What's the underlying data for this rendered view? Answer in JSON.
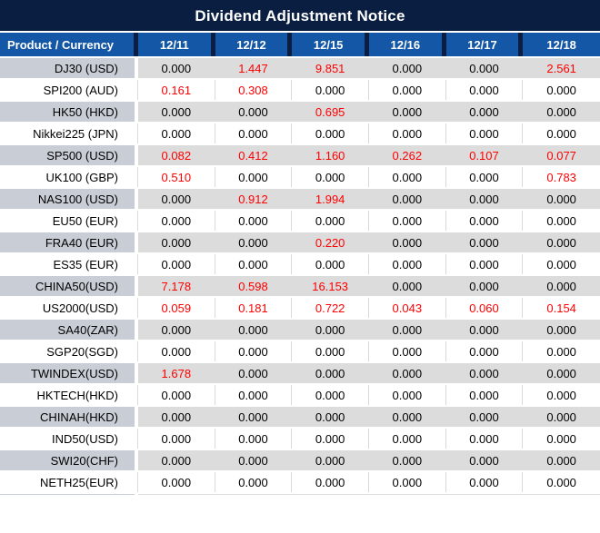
{
  "title": "Dividend Adjustment Notice",
  "colors": {
    "title_bg": "#0a1e42",
    "header_bg": "#1357a6",
    "header_divider": "#0a1e42",
    "alt_row_product_bg": "#c9ced6",
    "alt_row_data_bg": "#dcdcdc",
    "gridline": "#d9d9d9",
    "value_highlight_red": "#fe0000",
    "value_black": "#000000",
    "header_text": "#ffffff"
  },
  "table": {
    "product_header": "Product / Currency",
    "date_headers": [
      "12/11",
      "12/12",
      "12/15",
      "12/16",
      "12/17",
      "12/18"
    ],
    "rows": [
      {
        "product": "DJ30 (USD)",
        "values": [
          "0.000",
          "1.447",
          "9.851",
          "0.000",
          "0.000",
          "2.561"
        ],
        "red_flags": [
          0,
          1,
          1,
          0,
          0,
          1
        ]
      },
      {
        "product": "SPI200 (AUD)",
        "values": [
          "0.161",
          "0.308",
          "0.000",
          "0.000",
          "0.000",
          "0.000"
        ],
        "red_flags": [
          1,
          1,
          0,
          0,
          0,
          0
        ]
      },
      {
        "product": "HK50 (HKD)",
        "values": [
          "0.000",
          "0.000",
          "0.695",
          "0.000",
          "0.000",
          "0.000"
        ],
        "red_flags": [
          0,
          0,
          1,
          0,
          0,
          0
        ]
      },
      {
        "product": "Nikkei225 (JPN)",
        "values": [
          "0.000",
          "0.000",
          "0.000",
          "0.000",
          "0.000",
          "0.000"
        ],
        "red_flags": [
          0,
          0,
          0,
          0,
          0,
          0
        ]
      },
      {
        "product": "SP500 (USD)",
        "values": [
          "0.082",
          "0.412",
          "1.160",
          "0.262",
          "0.107",
          "0.077"
        ],
        "red_flags": [
          1,
          1,
          1,
          1,
          1,
          1
        ]
      },
      {
        "product": "UK100 (GBP)",
        "values": [
          "0.510",
          "0.000",
          "0.000",
          "0.000",
          "0.000",
          "0.783"
        ],
        "red_flags": [
          1,
          0,
          0,
          0,
          0,
          1
        ]
      },
      {
        "product": "NAS100 (USD)",
        "values": [
          "0.000",
          "0.912",
          "1.994",
          "0.000",
          "0.000",
          "0.000"
        ],
        "red_flags": [
          0,
          1,
          1,
          0,
          0,
          0
        ]
      },
      {
        "product": "EU50 (EUR)",
        "values": [
          "0.000",
          "0.000",
          "0.000",
          "0.000",
          "0.000",
          "0.000"
        ],
        "red_flags": [
          0,
          0,
          0,
          0,
          0,
          0
        ]
      },
      {
        "product": "FRA40 (EUR)",
        "values": [
          "0.000",
          "0.000",
          "0.220",
          "0.000",
          "0.000",
          "0.000"
        ],
        "red_flags": [
          0,
          0,
          1,
          0,
          0,
          0
        ]
      },
      {
        "product": "ES35 (EUR)",
        "values": [
          "0.000",
          "0.000",
          "0.000",
          "0.000",
          "0.000",
          "0.000"
        ],
        "red_flags": [
          0,
          0,
          0,
          0,
          0,
          0
        ]
      },
      {
        "product": "CHINA50(USD)",
        "values": [
          "7.178",
          "0.598",
          "16.153",
          "0.000",
          "0.000",
          "0.000"
        ],
        "red_flags": [
          1,
          1,
          1,
          0,
          0,
          0
        ]
      },
      {
        "product": "US2000(USD)",
        "values": [
          "0.059",
          "0.181",
          "0.722",
          "0.043",
          "0.060",
          "0.154"
        ],
        "red_flags": [
          1,
          1,
          1,
          1,
          1,
          1
        ]
      },
      {
        "product": "SA40(ZAR)",
        "values": [
          "0.000",
          "0.000",
          "0.000",
          "0.000",
          "0.000",
          "0.000"
        ],
        "red_flags": [
          0,
          0,
          0,
          0,
          0,
          0
        ]
      },
      {
        "product": "SGP20(SGD)",
        "values": [
          "0.000",
          "0.000",
          "0.000",
          "0.000",
          "0.000",
          "0.000"
        ],
        "red_flags": [
          0,
          0,
          0,
          0,
          0,
          0
        ]
      },
      {
        "product": "TWINDEX(USD)",
        "values": [
          "1.678",
          "0.000",
          "0.000",
          "0.000",
          "0.000",
          "0.000"
        ],
        "red_flags": [
          1,
          0,
          0,
          0,
          0,
          0
        ]
      },
      {
        "product": "HKTECH(HKD)",
        "values": [
          "0.000",
          "0.000",
          "0.000",
          "0.000",
          "0.000",
          "0.000"
        ],
        "red_flags": [
          0,
          0,
          0,
          0,
          0,
          0
        ]
      },
      {
        "product": "CHINAH(HKD)",
        "values": [
          "0.000",
          "0.000",
          "0.000",
          "0.000",
          "0.000",
          "0.000"
        ],
        "red_flags": [
          0,
          0,
          0,
          0,
          0,
          0
        ]
      },
      {
        "product": "IND50(USD)",
        "values": [
          "0.000",
          "0.000",
          "0.000",
          "0.000",
          "0.000",
          "0.000"
        ],
        "red_flags": [
          0,
          0,
          0,
          0,
          0,
          0
        ]
      },
      {
        "product": "SWI20(CHF)",
        "values": [
          "0.000",
          "0.000",
          "0.000",
          "0.000",
          "0.000",
          "0.000"
        ],
        "red_flags": [
          0,
          0,
          0,
          0,
          0,
          0
        ]
      },
      {
        "product": "NETH25(EUR)",
        "values": [
          "0.000",
          "0.000",
          "0.000",
          "0.000",
          "0.000",
          "0.000"
        ],
        "red_flags": [
          0,
          0,
          0,
          0,
          0,
          0
        ]
      }
    ]
  }
}
